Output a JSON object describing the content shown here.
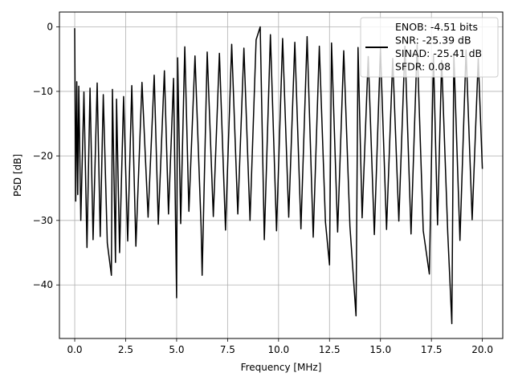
{
  "chart_data": {
    "type": "line",
    "title": "",
    "xlabel": "Frequency [MHz]",
    "ylabel": "PSD [dB]",
    "xlim": [
      -0.75,
      21.0
    ],
    "ylim": [
      -48.3,
      2.3
    ],
    "xticks": [
      0.0,
      2.5,
      5.0,
      7.5,
      10.0,
      12.5,
      15.0,
      17.5,
      20.0
    ],
    "xtick_labels": [
      "0.0",
      "2.5",
      "5.0",
      "7.5",
      "10.0",
      "12.5",
      "15.0",
      "17.5",
      "20.0"
    ],
    "yticks": [
      0,
      -10,
      -20,
      -30,
      -40
    ],
    "ytick_labels": [
      "0",
      "−10",
      "−20",
      "−30",
      "−40"
    ],
    "grid": true,
    "legend_position": "top-right",
    "legend": [
      "ENOB: -4.51 bits",
      "SNR: -25.39 dB",
      "SINAD: -25.41 dB",
      "SFDR: 0.08"
    ],
    "series": [
      {
        "color": "#000000",
        "x": [
          0.0,
          0.05,
          0.1,
          0.15,
          0.2,
          0.3,
          0.45,
          0.6,
          0.75,
          0.9,
          1.1,
          1.25,
          1.4,
          1.6,
          1.8,
          1.85,
          2.0,
          2.05,
          2.2,
          2.4,
          2.6,
          2.8,
          3.0,
          3.3,
          3.6,
          3.9,
          4.1,
          4.4,
          4.6,
          4.85,
          5.0,
          5.05,
          5.2,
          5.4,
          5.6,
          5.9,
          6.2,
          6.25,
          6.5,
          6.8,
          7.1,
          7.4,
          7.7,
          8.0,
          8.3,
          8.6,
          8.9,
          9.1,
          9.3,
          9.6,
          9.9,
          10.2,
          10.5,
          10.8,
          11.1,
          11.4,
          11.7,
          12.0,
          12.3,
          12.5,
          12.6,
          12.9,
          13.2,
          13.5,
          13.8,
          13.9,
          14.1,
          14.4,
          14.7,
          15.0,
          15.3,
          15.6,
          15.9,
          16.2,
          16.5,
          16.8,
          17.1,
          17.4,
          17.6,
          17.8,
          18.0,
          18.3,
          18.5,
          18.6,
          18.9,
          19.2,
          19.5,
          19.8,
          20.0
        ],
        "values": [
          -0.2,
          -27.0,
          -8.5,
          -26.0,
          -9.2,
          -30.0,
          -10.1,
          -34.2,
          -9.5,
          -33.0,
          -8.7,
          -32.5,
          -10.5,
          -33.5,
          -38.5,
          -9.7,
          -36.5,
          -11.2,
          -35.0,
          -10.8,
          -33.2,
          -9.1,
          -34.0,
          -8.6,
          -29.5,
          -7.5,
          -30.6,
          -6.8,
          -29.0,
          -8.0,
          -42.0,
          -4.8,
          -30.5,
          -3.1,
          -28.6,
          -4.5,
          -31.0,
          -38.5,
          -3.9,
          -29.4,
          -4.1,
          -31.5,
          -2.7,
          -29.0,
          -3.3,
          -30.0,
          -2.0,
          0.0,
          -33.0,
          -1.2,
          -31.6,
          -1.8,
          -29.5,
          -2.4,
          -31.3,
          -1.5,
          -32.6,
          -3.0,
          -30.2,
          -36.9,
          -2.5,
          -31.8,
          -3.7,
          -30.9,
          -44.8,
          -3.2,
          -29.6,
          -4.6,
          -32.2,
          -3.4,
          -31.4,
          -4.9,
          -30.1,
          -3.0,
          -32.1,
          -2.8,
          -31.6,
          -38.3,
          -4.4,
          -30.7,
          -5.2,
          -31.9,
          -46.0,
          -4.2,
          -33.1,
          -3.6,
          -29.9,
          -4.9,
          -22.0
        ]
      }
    ]
  }
}
